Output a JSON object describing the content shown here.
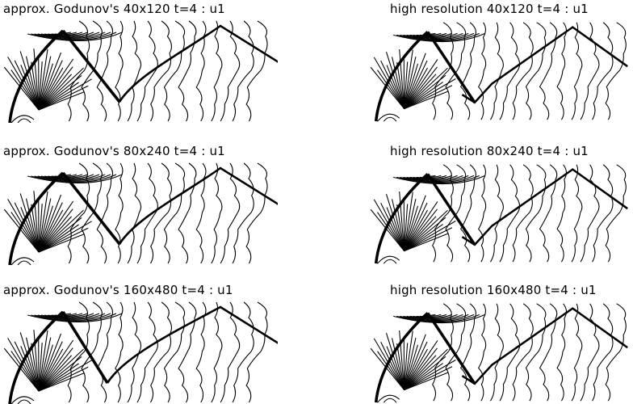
{
  "panels": [
    {
      "title": "approx. Godunov's 40x120 t=4 : u1",
      "scheme": "approx",
      "grid": "40x120"
    },
    {
      "title": "high resolution 40x120 t=4 : u1",
      "scheme": "high",
      "grid": "40x120"
    },
    {
      "title": "approx. Godunov's 80x240 t=4 : u1",
      "scheme": "approx",
      "grid": "80x240"
    },
    {
      "title": "high resolution 80x240 t=4 : u1",
      "scheme": "high",
      "grid": "80x240"
    },
    {
      "title": "approx. Godunov's 160x480 t=4 : u1",
      "scheme": "approx",
      "grid": "160x480"
    },
    {
      "title": "high resolution 160x480 t=4 : u1",
      "scheme": "high",
      "grid": "160x480"
    }
  ]
}
